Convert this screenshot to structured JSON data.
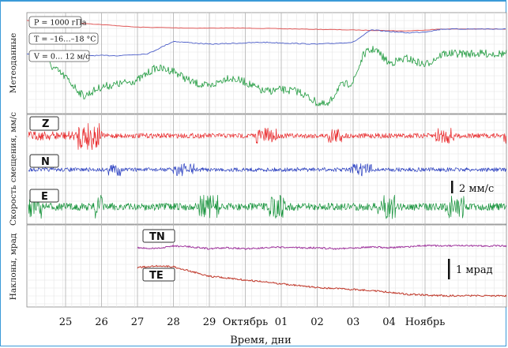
{
  "chart_data": {
    "type": "line",
    "xlabel": "Время, дни",
    "x_ticks": [
      "25",
      "26",
      "27",
      "28",
      "29",
      "Октябрь",
      "01",
      "02",
      "03",
      "04",
      "Ноябрь"
    ],
    "panels": [
      {
        "ylabel": "Метеоданные",
        "legend": [
          "P = 1000 гПа",
          "T = –16…–18 °С",
          "V = 0… 12 м/с"
        ],
        "series": [
          {
            "name": "P",
            "color": "#e05a5a",
            "x": [
              24.5,
              25.5,
              27,
              28.5,
              30,
              31.5,
              33,
              34.5,
              35.5
            ],
            "y": [
              0.95,
              0.92,
              0.88,
              0.87,
              0.87,
              0.86,
              0.85,
              0.84,
              0.86
            ]
          },
          {
            "name": "T",
            "color": "#4a5cc8",
            "x": [
              24.5,
              25.5,
              26.5,
              27.3,
              28,
              29,
              30.5,
              32,
              33,
              33.5,
              34.5,
              35,
              35.5
            ],
            "y": [
              0.6,
              0.58,
              0.58,
              0.6,
              0.73,
              0.7,
              0.72,
              0.7,
              0.72,
              0.85,
              0.82,
              0.83,
              0.86
            ]
          },
          {
            "name": "V",
            "color": "#1f9a3e",
            "x": [
              24.5,
              25,
              25.5,
              26,
              26.5,
              27,
              27.5,
              28,
              28.5,
              29,
              29.5,
              30,
              30.5,
              31,
              31.5,
              32,
              32.3,
              32.6,
              33,
              33.3,
              33.6,
              34,
              34.5,
              35,
              35.5
            ],
            "y": [
              0.5,
              0.35,
              0.15,
              0.25,
              0.28,
              0.32,
              0.45,
              0.42,
              0.3,
              0.25,
              0.35,
              0.3,
              0.2,
              0.22,
              0.2,
              0.08,
              0.05,
              0.25,
              0.3,
              0.6,
              0.65,
              0.5,
              0.55,
              0.48,
              0.6
            ]
          }
        ]
      },
      {
        "ylabel": "Скорость смещения, мм/с",
        "series": [
          {
            "name": "Z",
            "color": "#e8282a",
            "amplitude": 0.35
          },
          {
            "name": "N",
            "color": "#2a3fc0",
            "amplitude": 0.25
          },
          {
            "name": "E",
            "color": "#15923a",
            "amplitude": 0.45
          }
        ],
        "scale_bar": "2 мм/с"
      },
      {
        "ylabel": "Наклоны, мрад",
        "series": [
          {
            "name": "TN",
            "color": "#a0369e",
            "x": [
              27,
              27.5,
              28,
              28.5,
              29,
              29.5,
              30,
              30.5,
              31,
              31.5,
              32,
              32.5,
              33,
              33.5,
              34,
              34.5,
              35,
              35.5
            ],
            "y": [
              0.0,
              -0.05,
              0.1,
              0.05,
              -0.05,
              0.0,
              -0.05,
              0.0,
              0.02,
              0.0,
              0.0,
              -0.05,
              0.0,
              0.05,
              0.0,
              0.05,
              0.12,
              0.1
            ]
          },
          {
            "name": "TE",
            "color": "#c0392b",
            "x": [
              27,
              27.5,
              28,
              28.5,
              29,
              29.5,
              30,
              30.5,
              31,
              31.5,
              32,
              32.5,
              33,
              33.5,
              34,
              34.5,
              35,
              35.5
            ],
            "y": [
              -0.3,
              -0.2,
              -0.25,
              -0.5,
              -0.75,
              -0.85,
              -0.95,
              -1.05,
              -1.15,
              -1.25,
              -1.35,
              -1.4,
              -1.45,
              -1.5,
              -1.6,
              -1.7,
              -1.75,
              -1.78
            ]
          }
        ],
        "scale_bar": "1 мрад"
      }
    ]
  }
}
